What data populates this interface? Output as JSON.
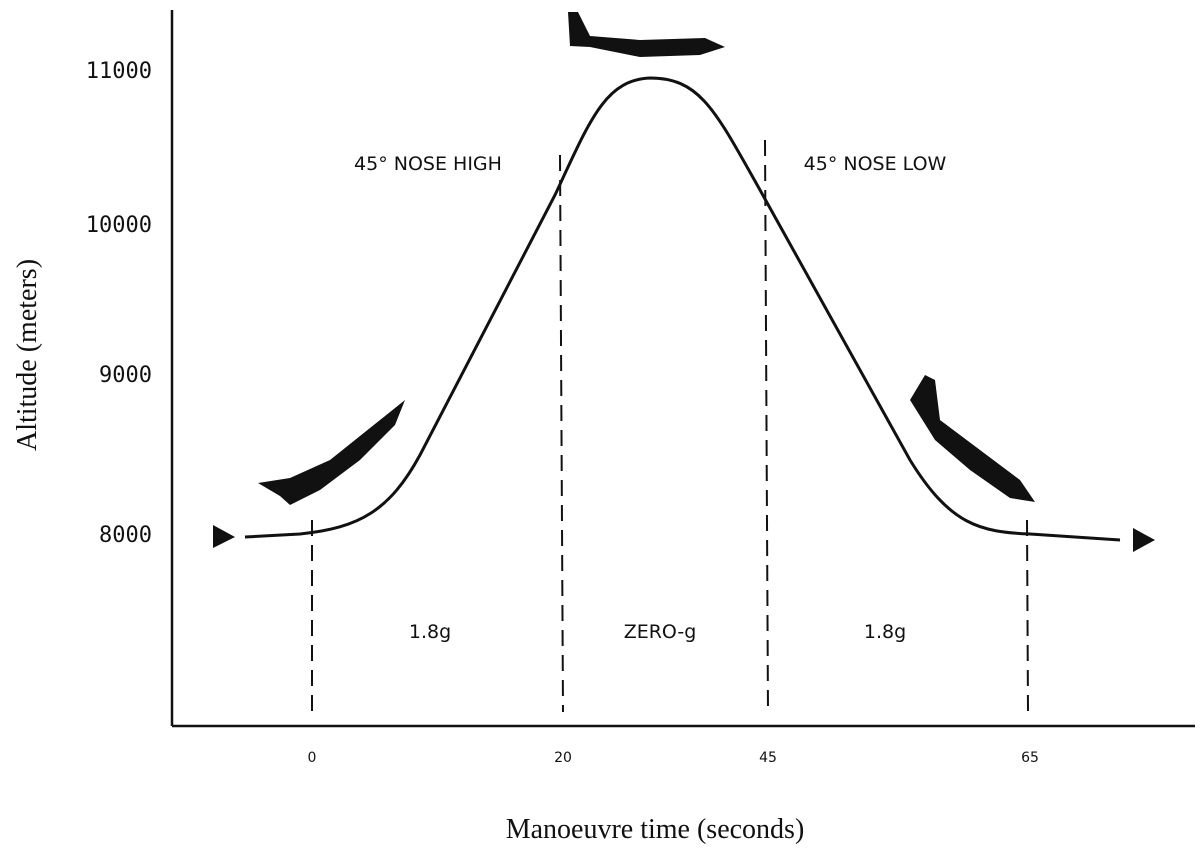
{
  "y_axis": {
    "title": "Altitude (meters)",
    "ticks": [
      "11000",
      "10000",
      "9000",
      "8000"
    ]
  },
  "x_axis": {
    "title": "Manoeuvre time (seconds)",
    "ticks": [
      "0",
      "20",
      "45",
      "65"
    ]
  },
  "annotations": [
    "45° NOSE HIGH",
    "45° NOSE LOW"
  ],
  "phases": [
    "1.8g",
    "ZERO-g",
    "1.8g"
  ]
}
